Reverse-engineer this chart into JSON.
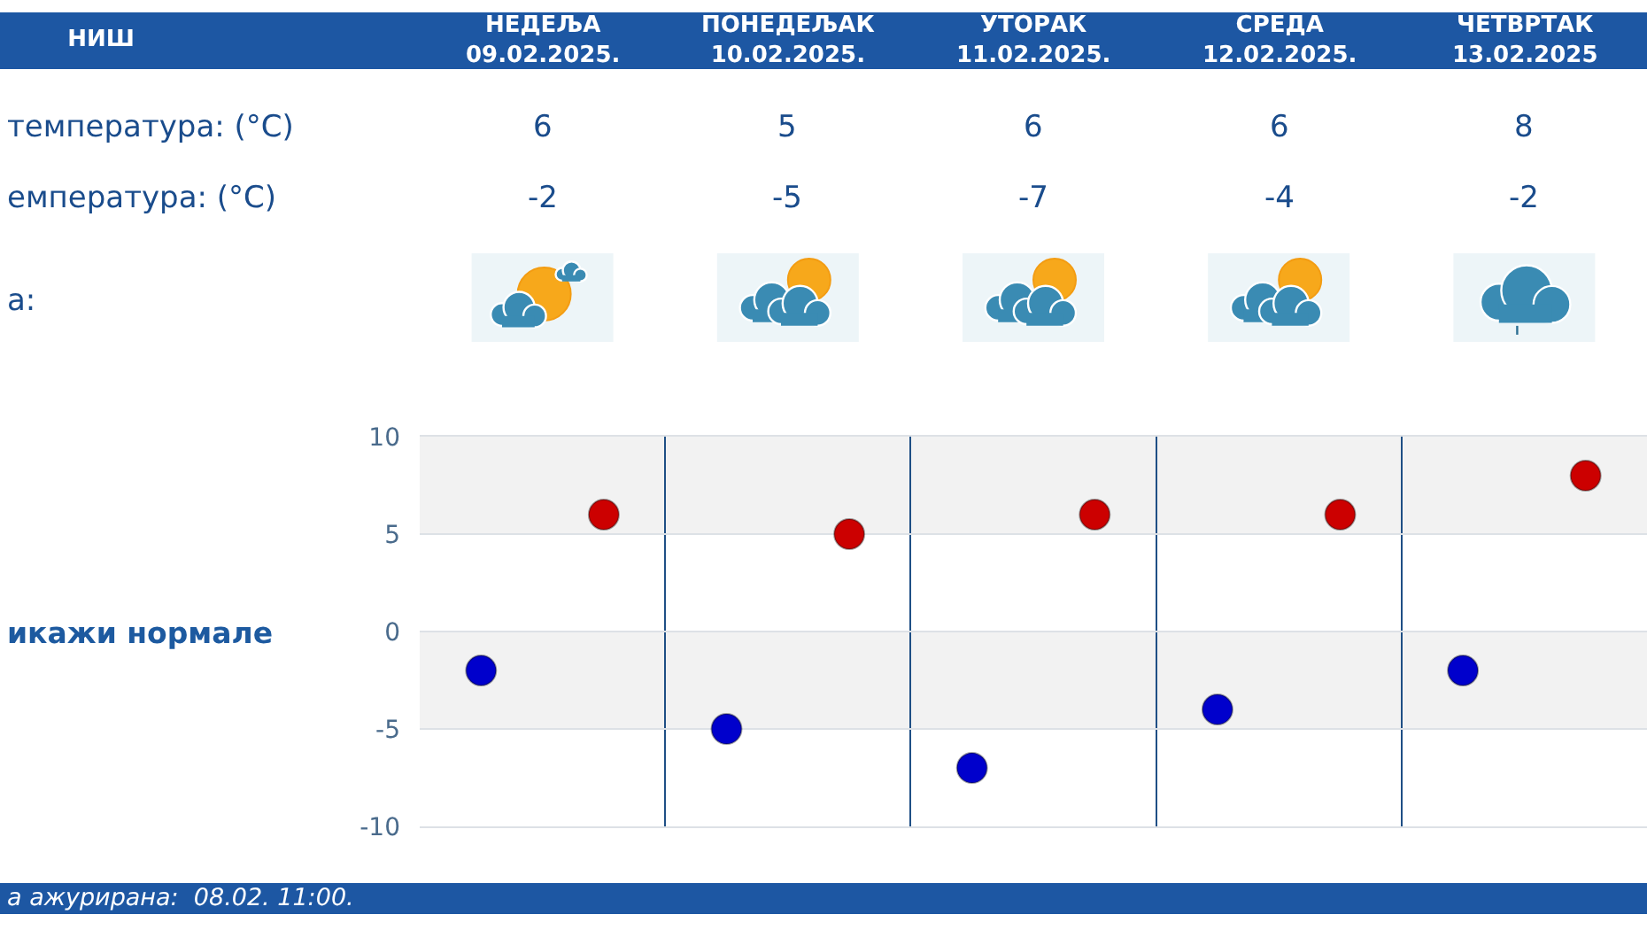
{
  "chart_data": {
    "type": "scatter",
    "title": "НИШ",
    "categories": [
      null,
      null,
      null,
      null,
      null
    ],
    "series": [
      {
        "color": "#cc0000",
        "values": [
          6,
          5,
          6,
          6,
          8
        ]
      },
      {
        "color": "#0000cc",
        "values": [
          -2,
          -5,
          -7,
          -4,
          -2
        ]
      }
    ],
    "ylim": [
      -10,
      10
    ],
    "yticks": [
      -10,
      -5,
      0,
      5,
      10
    ],
    "tick_labels": "y",
    "grid": true,
    "marker": "circle",
    "data_labels": true,
    "bands": [
      {
        "axis": "y",
        "from": 5,
        "to": 10,
        "color": "#f2f2f2"
      },
      {
        "axis": "y",
        "from": -5,
        "to": 0,
        "color": "#f2f2f2"
      }
    ],
    "annotations": [
      "НЕДЕЉА\n09.02.2025.",
      "ПОНЕДЕЉАК\n10.02.2025.",
      "УТОРАК\n11.02.2025.",
      "СРЕДА\n12.02.2025.",
      "ЧЕТВРТАК\n13.02.2025",
      "температура: (°C)",
      "емпература: (°C)",
      "а:",
      "икажи нормале",
      "а ажурирана:  08.02. 11:00."
    ]
  }
}
